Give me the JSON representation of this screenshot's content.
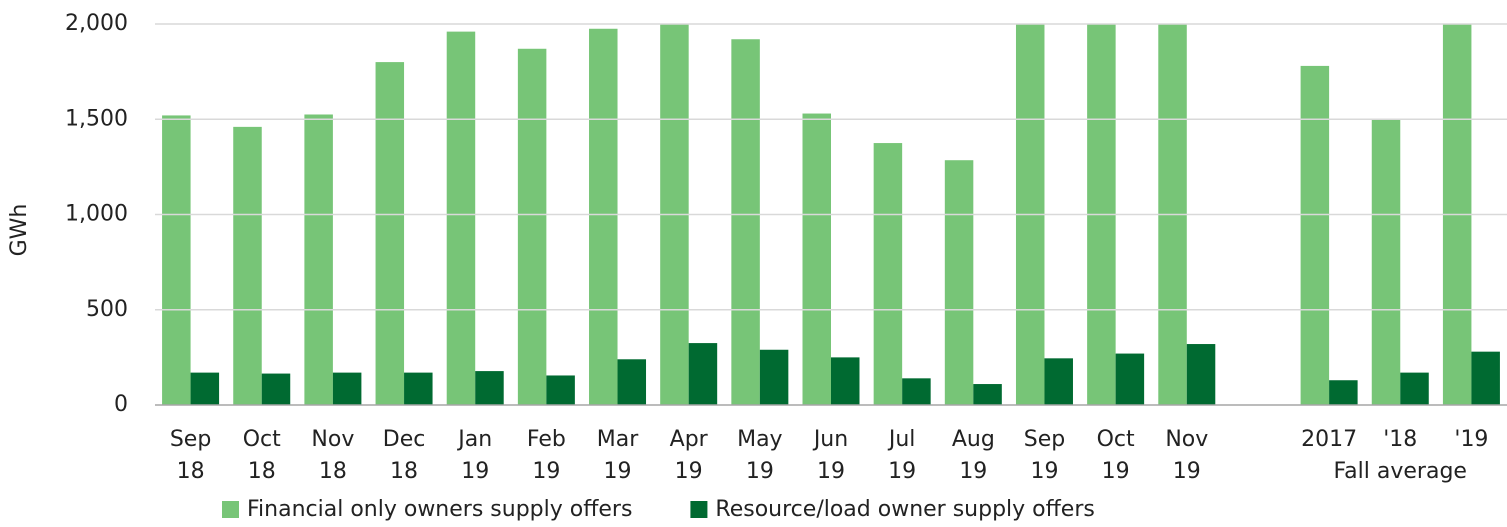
{
  "chart_data": {
    "type": "bar",
    "y_label": "GWh",
    "categories": [
      [
        "Sep",
        "18"
      ],
      [
        "Oct",
        "18"
      ],
      [
        "Nov",
        "18"
      ],
      [
        "Dec",
        "18"
      ],
      [
        "Jan",
        "19"
      ],
      [
        "Feb",
        "19"
      ],
      [
        "Mar",
        "19"
      ],
      [
        "Apr",
        "19"
      ],
      [
        "May",
        "19"
      ],
      [
        "Jun",
        "19"
      ],
      [
        "Jul",
        "19"
      ],
      [
        "Aug",
        "19"
      ],
      [
        "Sep",
        "19"
      ],
      [
        "Oct",
        "19"
      ],
      [
        "Nov",
        "19"
      ],
      null,
      [
        "2017"
      ],
      [
        "'18"
      ],
      [
        "'19"
      ]
    ],
    "group_label": "Fall average",
    "series": [
      {
        "name": "Financial only owners supply offers",
        "color": "#77c577",
        "values": [
          1520,
          1460,
          1525,
          1800,
          1960,
          1870,
          1975,
          2000,
          1920,
          1530,
          1375,
          1285,
          2000,
          2000,
          2000,
          null,
          1780,
          1500,
          2000
        ]
      },
      {
        "name": "Resource/load owner supply offers",
        "color": "#006a31",
        "values": [
          170,
          165,
          170,
          170,
          178,
          155,
          240,
          325,
          290,
          250,
          140,
          110,
          245,
          270,
          320,
          null,
          130,
          170,
          280
        ]
      }
    ],
    "ylim": [
      0,
      2000
    ],
    "yticks": [
      0,
      {
        "value": 500,
        "label": "500"
      },
      {
        "value": 1000,
        "label": "1,000"
      },
      {
        "value": 1500,
        "label": "1,500"
      },
      {
        "value": 2000,
        "label": "2,000"
      }
    ],
    "grid": true,
    "legend": "bottom"
  }
}
